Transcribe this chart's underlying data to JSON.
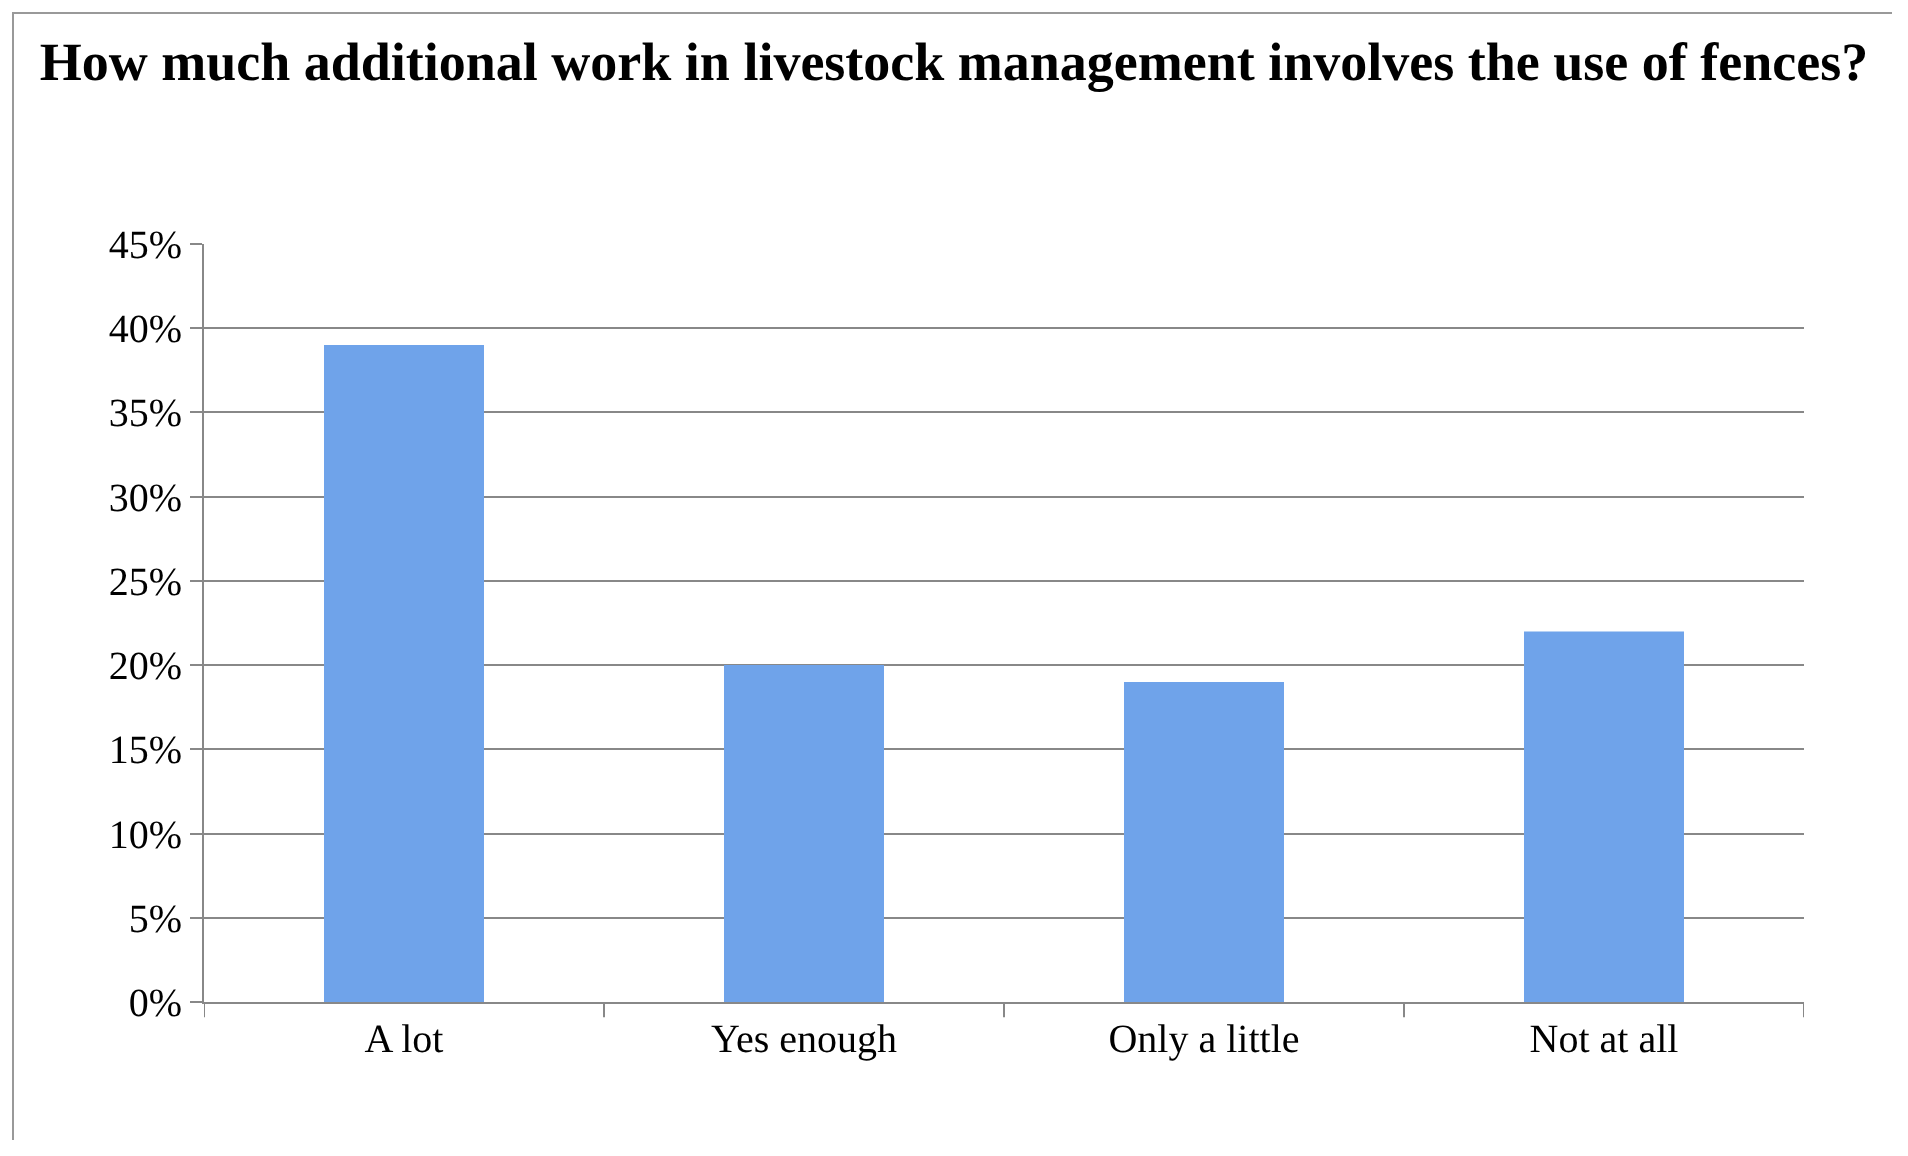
{
  "chart_data": {
    "type": "bar",
    "title": "How much additional work in livestock management involves the use of fences?",
    "categories": [
      "A lot",
      "Yes enough",
      "Only a little",
      "Not at all"
    ],
    "values": [
      39,
      20,
      19,
      22
    ],
    "color": "#6fa3ea",
    "ylim": [
      0,
      45
    ],
    "yticks": [
      {
        "value": 0,
        "label": "0%"
      },
      {
        "value": 5,
        "label": "5%"
      },
      {
        "value": 10,
        "label": "10%"
      },
      {
        "value": 15,
        "label": "15%"
      },
      {
        "value": 20,
        "label": "20%"
      },
      {
        "value": 25,
        "label": "25%"
      },
      {
        "value": 30,
        "label": "30%"
      },
      {
        "value": 35,
        "label": "35%"
      },
      {
        "value": 40,
        "label": "40%"
      },
      {
        "value": 45,
        "label": "45%"
      }
    ],
    "grid": "y",
    "legend": false
  }
}
